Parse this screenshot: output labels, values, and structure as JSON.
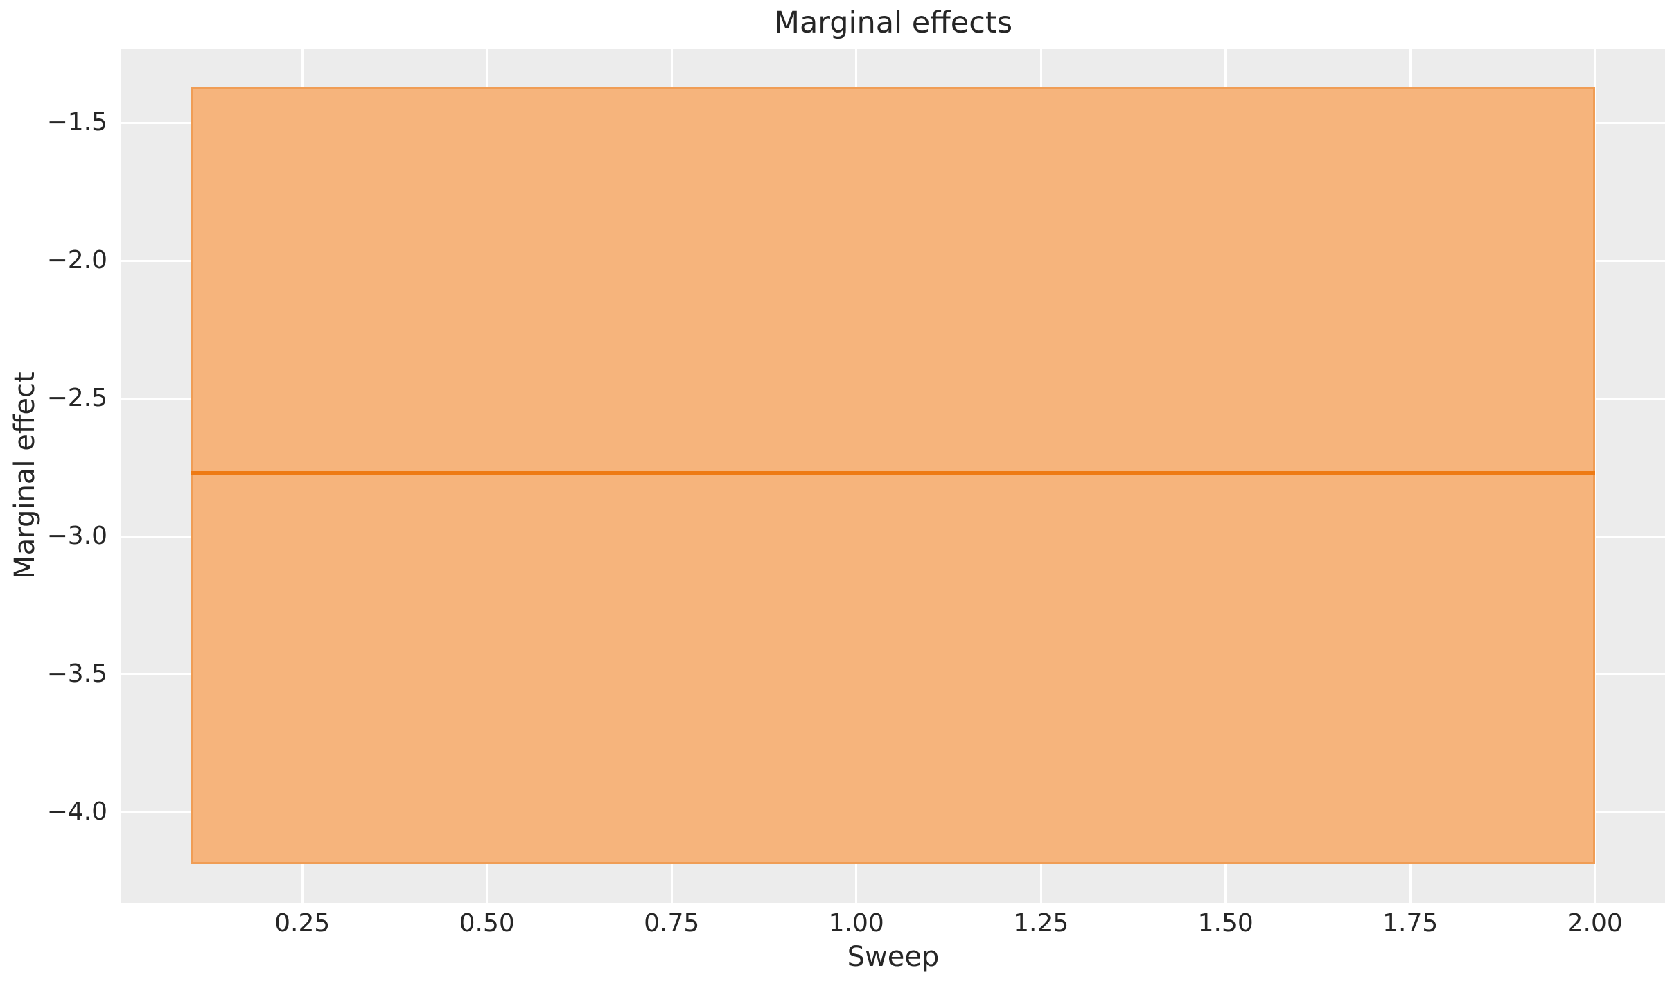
{
  "chart_data": {
    "type": "area",
    "title": "Marginal effects",
    "xlabel": "Sweep",
    "ylabel": "Marginal effect",
    "x_tick_labels": [
      "0.25",
      "0.50",
      "0.75",
      "1.00",
      "1.25",
      "1.50",
      "1.75",
      "2.00"
    ],
    "x_tick_values": [
      0.25,
      0.5,
      0.75,
      1.0,
      1.25,
      1.5,
      1.75,
      2.0
    ],
    "y_tick_labels": [
      "−1.5",
      "−2.0",
      "−2.5",
      "−3.0",
      "−3.5",
      "−4.0"
    ],
    "y_tick_values": [
      -1.5,
      -2.0,
      -2.5,
      -3.0,
      -3.5,
      -4.0
    ],
    "xlim": [
      0.005,
      2.095
    ],
    "ylim": [
      -4.33,
      -1.23
    ],
    "grid": true,
    "legend_position": "none",
    "series": [
      {
        "name": "confidence band",
        "type": "band",
        "x": [
          0.1,
          2.0
        ],
        "y_upper": [
          -1.37,
          -1.37
        ],
        "y_lower": [
          -4.19,
          -4.19
        ],
        "fill_color": "#f6b47c",
        "edge_color": "#f09d55"
      },
      {
        "name": "marginal effect",
        "type": "line",
        "x": [
          0.1,
          2.0
        ],
        "y": [
          -2.77,
          -2.77
        ],
        "color": "#ee7a14",
        "linewidth": 5
      }
    ],
    "colors": {
      "figure_background": "#ffffff",
      "plot_background": "#ececec",
      "gridline": "#ffffff",
      "text": "#262626",
      "accent_orange": "#ee7a14"
    }
  }
}
